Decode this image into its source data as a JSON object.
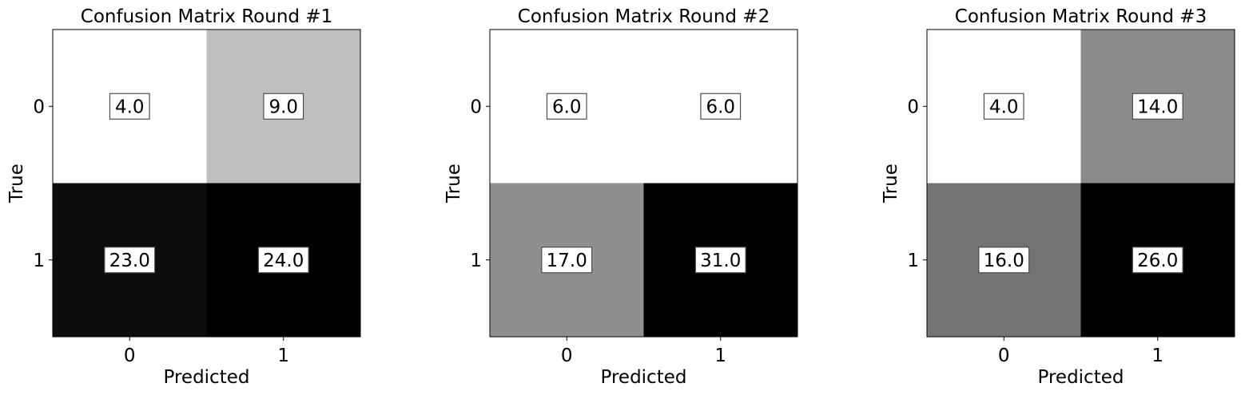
{
  "chart_data": [
    {
      "type": "heatmap",
      "title": "Confusion Matrix Round #1",
      "xlabel": "Predicted",
      "ylabel": "True",
      "x_categories": [
        "0",
        "1"
      ],
      "y_categories": [
        "0",
        "1"
      ],
      "values": [
        [
          4.0,
          9.0
        ],
        [
          23.0,
          24.0
        ]
      ],
      "cell_labels": [
        [
          "4.0",
          "9.0"
        ],
        [
          "23.0",
          "24.0"
        ]
      ],
      "colormap": "gray_r",
      "grid": false
    },
    {
      "type": "heatmap",
      "title": "Confusion Matrix Round #2",
      "xlabel": "Predicted",
      "ylabel": "True",
      "x_categories": [
        "0",
        "1"
      ],
      "y_categories": [
        "0",
        "1"
      ],
      "values": [
        [
          6.0,
          6.0
        ],
        [
          17.0,
          31.0
        ]
      ],
      "cell_labels": [
        [
          "6.0",
          "6.0"
        ],
        [
          "17.0",
          "31.0"
        ]
      ],
      "colormap": "gray_r",
      "grid": false
    },
    {
      "type": "heatmap",
      "title": "Confusion Matrix Round #3",
      "xlabel": "Predicted",
      "ylabel": "True",
      "x_categories": [
        "0",
        "1"
      ],
      "y_categories": [
        "0",
        "1"
      ],
      "values": [
        [
          4.0,
          14.0
        ],
        [
          16.0,
          26.0
        ]
      ],
      "cell_labels": [
        [
          "4.0",
          "14.0"
        ],
        [
          "16.0",
          "26.0"
        ]
      ],
      "colormap": "gray_r",
      "grid": false
    }
  ]
}
